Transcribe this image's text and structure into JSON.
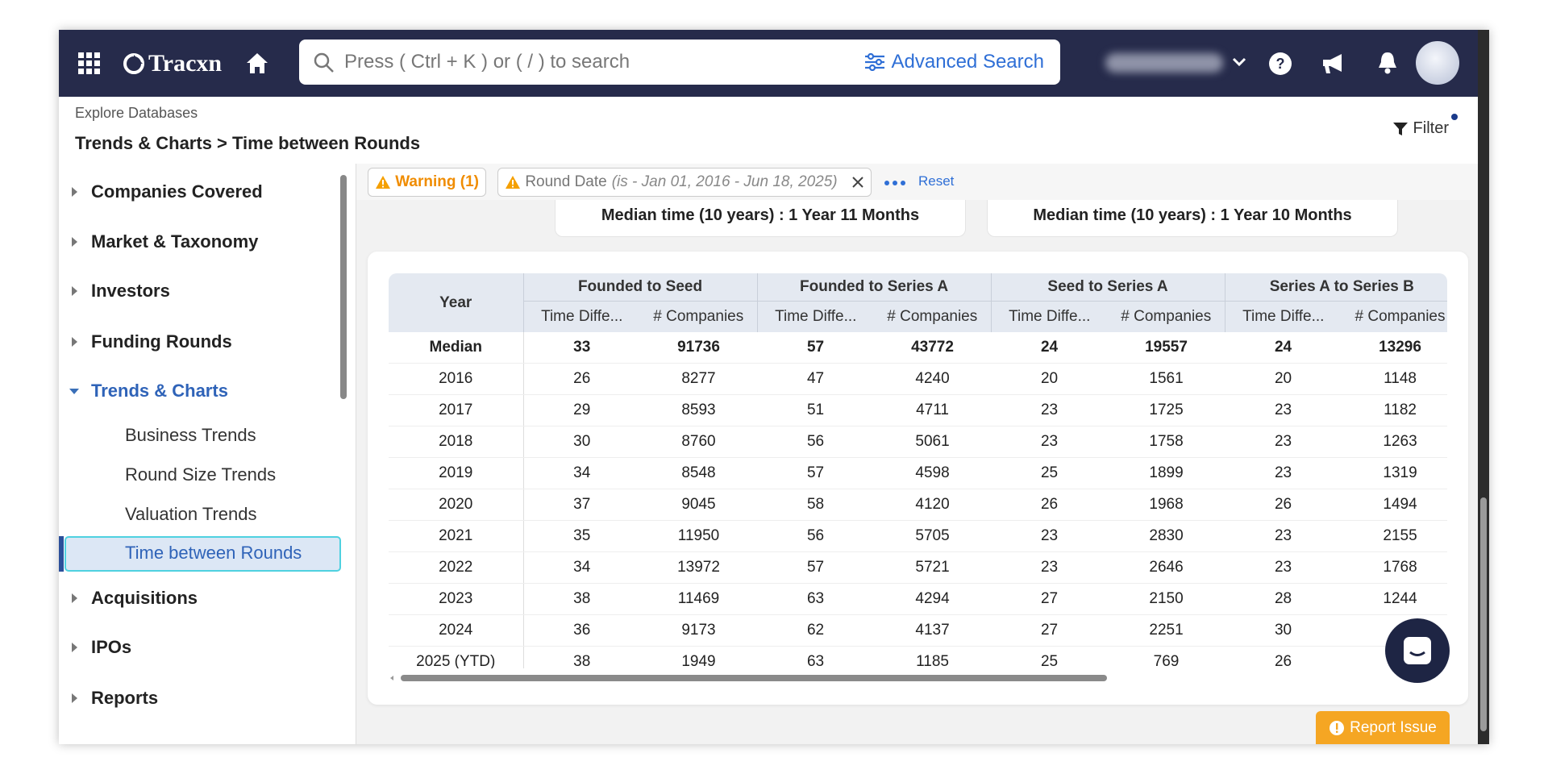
{
  "nav": {
    "logo": "Tracxn",
    "search_placeholder": "Press ( Ctrl + K ) or ( / ) to search",
    "advanced_search": "Advanced Search"
  },
  "header": {
    "breadcrumb_top": "Explore Databases",
    "breadcrumb": "Trends & Charts > Time between Rounds",
    "filter": "Filter"
  },
  "sidebar": {
    "items": [
      {
        "label": "Companies Covered",
        "level": 0,
        "state": "collapsed"
      },
      {
        "label": "Market & Taxonomy",
        "level": 0,
        "state": "collapsed"
      },
      {
        "label": "Investors",
        "level": 0,
        "state": "collapsed"
      },
      {
        "label": "Funding Rounds",
        "level": 0,
        "state": "collapsed"
      },
      {
        "label": "Trends & Charts",
        "level": 0,
        "state": "expanded"
      },
      {
        "label": "Business Trends",
        "level": 1
      },
      {
        "label": "Round Size Trends",
        "level": 1
      },
      {
        "label": "Valuation Trends",
        "level": 1
      },
      {
        "label": "Time between Rounds",
        "level": 1,
        "selected": true
      },
      {
        "label": "Acquisitions",
        "level": 0,
        "state": "collapsed"
      },
      {
        "label": "IPOs",
        "level": 0,
        "state": "collapsed"
      },
      {
        "label": "Reports",
        "level": 0,
        "state": "collapsed"
      }
    ]
  },
  "filters": {
    "warning": "Warning (1)",
    "chip_label": "Round Date",
    "chip_value": "(is - Jan 01, 2016 - Jun 18, 2025)",
    "reset": "Reset"
  },
  "medians": [
    "Median time (10 years) : 1 Year 11 Months",
    "Median time (10 years) : 1 Year 10 Months"
  ],
  "table": {
    "year_header": "Year",
    "groups": [
      "Founded to Seed",
      "Founded to Series A",
      "Seed to Series A",
      "Series A to Series B"
    ],
    "subheaders": [
      "Time Diffe...",
      "# Companies",
      "Time Diffe...",
      "# Companies",
      "Time Diffe...",
      "# Companies",
      "Time Diffe...",
      "# Companies"
    ],
    "rows": [
      [
        "Median",
        33,
        91736,
        57,
        43772,
        24,
        19557,
        24,
        13296
      ],
      [
        "2016",
        26,
        8277,
        47,
        4240,
        20,
        1561,
        20,
        1148
      ],
      [
        "2017",
        29,
        8593,
        51,
        4711,
        23,
        1725,
        23,
        1182
      ],
      [
        "2018",
        30,
        8760,
        56,
        5061,
        23,
        1758,
        23,
        1263
      ],
      [
        "2019",
        34,
        8548,
        57,
        4598,
        25,
        1899,
        23,
        1319
      ],
      [
        "2020",
        37,
        9045,
        58,
        4120,
        26,
        1968,
        26,
        1494
      ],
      [
        "2021",
        35,
        11950,
        56,
        5705,
        23,
        2830,
        23,
        2155
      ],
      [
        "2022",
        34,
        13972,
        57,
        5721,
        23,
        2646,
        23,
        1768
      ],
      [
        "2023",
        38,
        11469,
        63,
        4294,
        27,
        2150,
        28,
        1244
      ],
      [
        "2024",
        36,
        9173,
        62,
        4137,
        27,
        2251,
        30,
        null
      ],
      [
        "2025 (YTD)",
        38,
        1949,
        63,
        1185,
        25,
        769,
        26,
        null
      ]
    ]
  },
  "report_issue": "Report Issue"
}
